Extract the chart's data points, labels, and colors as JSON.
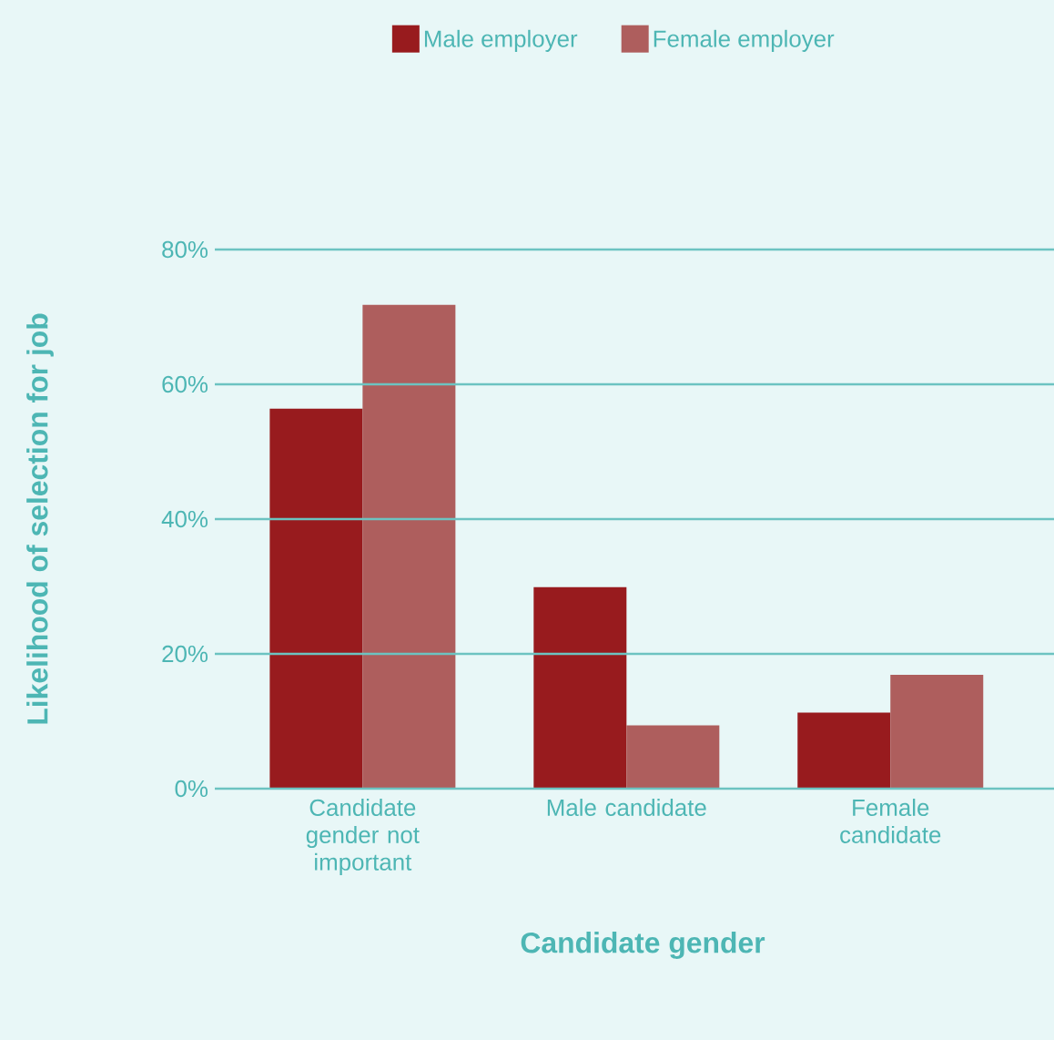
{
  "chart_data": {
    "type": "bar",
    "categories": [
      "Candidate gender not important",
      "Male candidate",
      "Female candidate"
    ],
    "series": [
      {
        "name": "Male employer",
        "color": "#981b1e",
        "values": [
          56.4,
          29.9,
          11.3
        ]
      },
      {
        "name": "Female employer",
        "color": "#ae5e5d",
        "values": [
          71.8,
          9.4,
          16.9
        ]
      }
    ],
    "xlabel": "Candidate gender",
    "ylabel": "Likelihood of selection for job",
    "ylim": [
      0,
      80
    ],
    "yticks": [
      {
        "value": 0,
        "label": "0%"
      },
      {
        "value": 20,
        "label": "20%"
      },
      {
        "value": 40,
        "label": "40%"
      },
      {
        "value": 60,
        "label": "60%"
      },
      {
        "value": 80,
        "label": "80%"
      }
    ],
    "grid": "y",
    "legend": "top"
  }
}
